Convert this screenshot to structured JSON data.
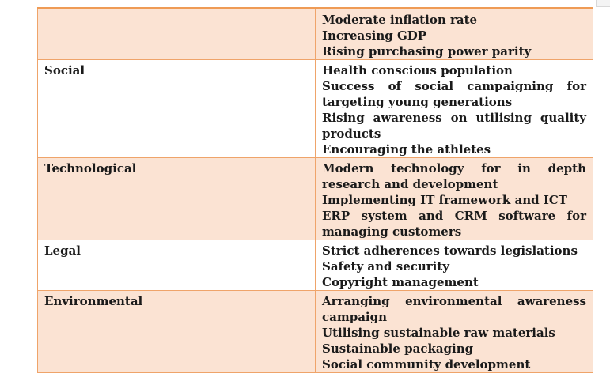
{
  "rows": [
    {
      "factor": "",
      "points": [
        "Moderate inflation rate",
        "Increasing GDP",
        "Rising purchasing power parity"
      ],
      "shaded": true
    },
    {
      "factor": "Social",
      "points": [
        "Health conscious population",
        "Success of social campaigning for targeting young generations",
        "Rising awareness on utilising quality products",
        "Encouraging the athletes"
      ],
      "shaded": false
    },
    {
      "factor": "Technological",
      "points": [
        "Modern technology for in depth research and development",
        "Implementing IT framework and ICT",
        "ERP system and CRM software for managing customers"
      ],
      "shaded": true
    },
    {
      "factor": "Legal",
      "points": [
        "Strict adherences towards legislations",
        "Safety and security",
        "Copyright management"
      ],
      "shaded": false
    },
    {
      "factor": "Environmental",
      "points": [
        "Arranging environmental awareness campaign",
        "Utilising sustainable raw materials",
        "Sustainable packaging",
        "Social community development"
      ],
      "shaded": true
    }
  ]
}
